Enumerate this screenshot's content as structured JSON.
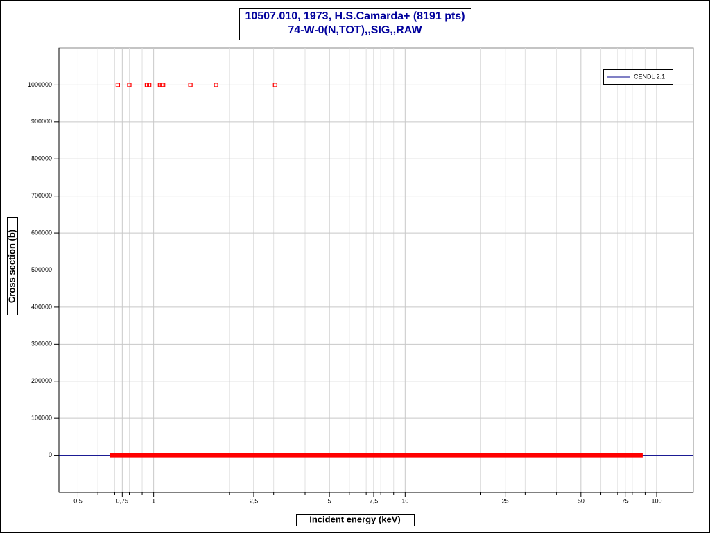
{
  "chart_data": {
    "type": "scatter",
    "title": "10507.010, 1973, H.S.Camarda+ (8191 pts)",
    "subtitle": "74-W-0(N,TOT),,SIG,,RAW",
    "x_label": "Incident energy (keV)",
    "y_label": "Cross section (b)",
    "xlog": true,
    "grid": true,
    "legend": "top-right",
    "xlim": [
      0.42,
      140
    ],
    "ylim": [
      -100000,
      1100000
    ],
    "xticks": [
      {
        "value": 0.5,
        "label": "0,5"
      },
      {
        "value": 0.75,
        "label": "0,75"
      },
      1,
      {
        "value": 2.5,
        "label": "2,5"
      },
      5,
      {
        "value": 7.5,
        "label": "7,5"
      },
      10,
      25,
      50,
      75,
      100
    ],
    "xminorticks": [
      0.6,
      0.7,
      0.8,
      0.9,
      2,
      3,
      4,
      6,
      7,
      8,
      9,
      20,
      30,
      40,
      60,
      70,
      80,
      90
    ],
    "yticks": [
      0,
      100000,
      200000,
      300000,
      400000,
      500000,
      600000,
      700000,
      800000,
      900000,
      1000000
    ],
    "series": [
      {
        "name": "CENDL 2.1",
        "color": "#00008b",
        "style": "line",
        "width": 1,
        "x": [
          0.42,
          140
        ],
        "values": [
          0,
          0
        ]
      },
      {
        "color": "#ff0000",
        "style": "line",
        "width": 6,
        "x": [
          0.67,
          1,
          2,
          5,
          10,
          20,
          50,
          88
        ],
        "values": [
          0,
          0,
          0,
          0,
          0,
          0,
          0,
          0
        ]
      },
      {
        "color": "#ff0000",
        "style": "markers",
        "x": [
          0.72,
          0.8,
          0.94,
          0.96,
          1.06,
          1.08,
          1.09,
          1.4,
          1.77,
          3.04
        ],
        "values": [
          1000000,
          1000000,
          1000000,
          1000000,
          1000000,
          1000000,
          1000000,
          1000000,
          1000000,
          1000000
        ]
      }
    ]
  }
}
